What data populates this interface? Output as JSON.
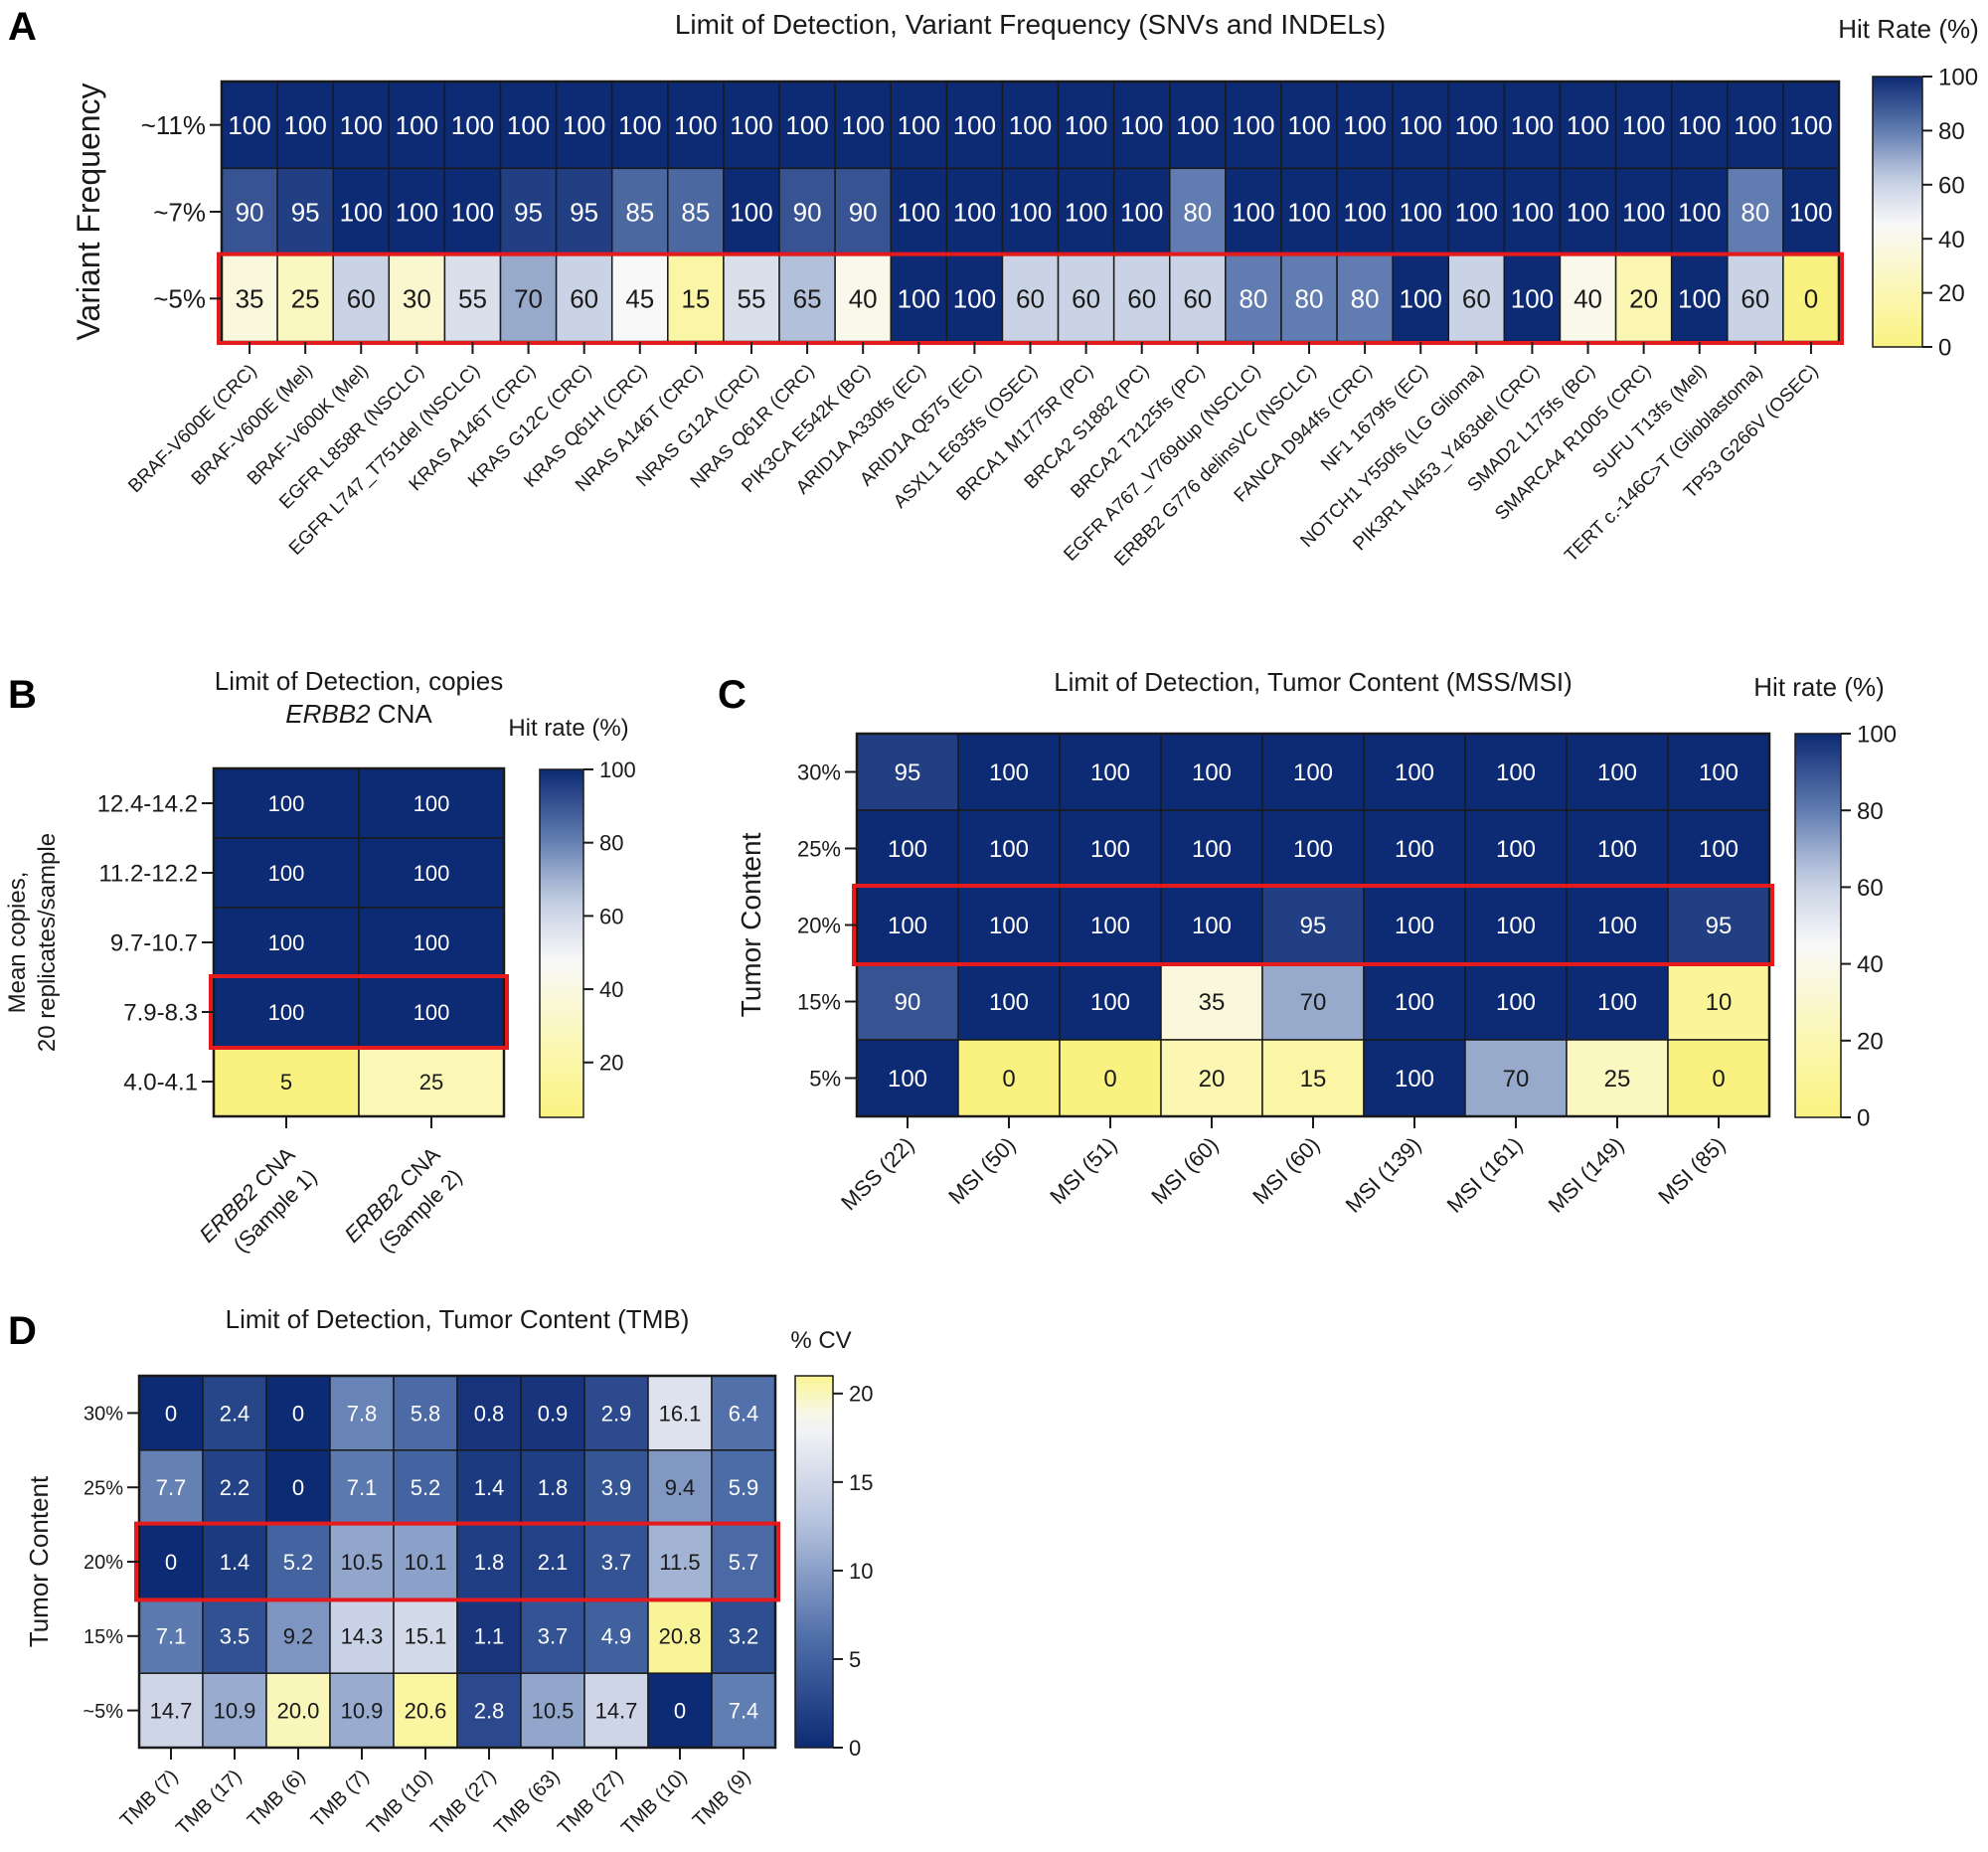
{
  "chart_data": [
    {
      "panel_label": "A",
      "type": "heatmap",
      "title": "Limit of Detection, Variant Frequency (SNVs and  INDELs)",
      "ylabel": "Variant Frequency",
      "colorbar_title": "Hit Rate (%)",
      "colorbar_ticks": [
        "100",
        "80",
        "60",
        "40",
        "20",
        "0"
      ],
      "value_range": [
        0,
        100
      ],
      "colorscale": "hit",
      "rows": [
        "~11%",
        "~7%",
        "~5%"
      ],
      "columns": [
        "BRAF-V600E (CRC)",
        "BRAF-V600E (Mel)",
        "BRAF-V600K (Mel)",
        "EGFR L858R (NSCLC)",
        "EGFR L747_T751del (NSCLC)",
        "KRAS A146T (CRC)",
        "KRAS G12C (CRC)",
        "KRAS Q61H (CRC)",
        "NRAS A146T (CRC)",
        "NRAS G12A (CRC)",
        "NRAS Q61R (CRC)",
        "PIK3CA E542K (BC)",
        "ARID1A A330fs (EC)",
        "ARID1A Q575 (EC)",
        "ASXL1 E635fs (OSEC)",
        "BRCA1 M1775R (PC)",
        "BRCA2 S1882 (PC)",
        "BRCA2 T2125fs (PC)",
        "EGFR A767_V769dup (NSCLC)",
        "ERBB2 G776 delinsVC (NSCLC)",
        "FANCA D944fs (CRC)",
        "NF1 1679fs (EC)",
        "NOTCH1 Y550fs (LG Glioma)",
        "PIK3R1 N453_Y463del (CRC)",
        "SMAD2 L175fs (BC)",
        "SMARCA4 R1005 (CRC)",
        "SUFU T13fs (Mel)",
        "TERT c.-146C>T (Glioblastoma)",
        "TP53 G266V (OSEC)"
      ],
      "values": [
        [
          100,
          100,
          100,
          100,
          100,
          100,
          100,
          100,
          100,
          100,
          100,
          100,
          100,
          100,
          100,
          100,
          100,
          100,
          100,
          100,
          100,
          100,
          100,
          100,
          100,
          100,
          100,
          100,
          100
        ],
        [
          90,
          95,
          100,
          100,
          100,
          95,
          95,
          85,
          85,
          100,
          90,
          90,
          100,
          100,
          100,
          100,
          100,
          80,
          100,
          100,
          100,
          100,
          100,
          100,
          100,
          100,
          100,
          80,
          100
        ],
        [
          35,
          25,
          60,
          30,
          55,
          70,
          60,
          45,
          15,
          55,
          65,
          40,
          100,
          100,
          60,
          60,
          60,
          60,
          80,
          80,
          80,
          100,
          60,
          100,
          40,
          20,
          100,
          60,
          0
        ]
      ],
      "value_labels": [
        [
          "100",
          "100",
          "100",
          "100",
          "100",
          "100",
          "100",
          "100",
          "100",
          "100",
          "100",
          "100",
          "100",
          "100",
          "100",
          "100",
          "100",
          "100",
          "100",
          "100",
          "100",
          "100",
          "100",
          "100",
          "100",
          "100",
          "100",
          "100",
          "100"
        ],
        [
          "90",
          "95",
          "100",
          "100",
          "100",
          "95",
          "95",
          "85",
          "85",
          "100",
          "90",
          "90",
          "100",
          "100",
          "100",
          "100",
          "100",
          "80",
          "100",
          "100",
          "100",
          "100",
          "100",
          "100",
          "100",
          "100",
          "100",
          "80",
          "100"
        ],
        [
          "35",
          "25",
          "60",
          "30",
          "55",
          "70",
          "60",
          "45",
          "15",
          "55",
          "65",
          "40",
          "100",
          "100",
          "60",
          "60",
          "60",
          "60",
          "80",
          "80",
          "80",
          "100",
          "60",
          "100",
          "40",
          "20",
          "100",
          "60",
          "0"
        ]
      ],
      "highlight_row": 2,
      "highlight_color": "#e41a1c"
    },
    {
      "panel_label": "B",
      "type": "heatmap",
      "title_lines": [
        "Limit of Detection, copies"
      ],
      "title_italic": "ERBB2",
      "title_rest": " CNA",
      "ylabel_lines": [
        "Mean copies,",
        "20 replicates/sample"
      ],
      "colorbar_title": "Hit rate  (%)",
      "colorbar_ticks": [
        "100",
        "80",
        "60",
        "40",
        "20"
      ],
      "value_range": [
        5,
        100
      ],
      "colorscale": "hit",
      "rows": [
        "12.4-14.2",
        "11.2-12.2",
        "9.7-10.7",
        "7.9-8.3",
        "4.0-4.1"
      ],
      "columns": [
        {
          "italic": "ERBB2",
          "rest": " CNA",
          "line2": "(Sample 1)"
        },
        {
          "italic": "ERBB2",
          "rest": " CNA",
          "line2": "(Sample 2)"
        }
      ],
      "values": [
        [
          100,
          100
        ],
        [
          100,
          100
        ],
        [
          100,
          100
        ],
        [
          100,
          100
        ],
        [
          5,
          25
        ]
      ],
      "value_labels": [
        [
          "100",
          "100"
        ],
        [
          "100",
          "100"
        ],
        [
          "100",
          "100"
        ],
        [
          "100",
          "100"
        ],
        [
          "5",
          "25"
        ]
      ],
      "highlight_row": 3,
      "highlight_color": "#e41a1c"
    },
    {
      "panel_label": "C",
      "type": "heatmap",
      "title": "Limit of Detection, Tumor Content (MSS/MSI)",
      "ylabel": "Tumor  Content",
      "colorbar_title": "Hit rate  (%)",
      "colorbar_ticks": [
        "100",
        "80",
        "60",
        "40",
        "20",
        "0"
      ],
      "value_range": [
        0,
        100
      ],
      "colorscale": "hit",
      "rows": [
        "30%",
        "25%",
        "20%",
        "15%",
        "5%"
      ],
      "columns": [
        "MSS (22)",
        "MSI (50)",
        "MSI (51)",
        "MSI (60)",
        "MSI (60)",
        "MSI (139)",
        "MSI (161)",
        "MSI (149)",
        "MSI (85)"
      ],
      "values": [
        [
          95,
          100,
          100,
          100,
          100,
          100,
          100,
          100,
          100
        ],
        [
          100,
          100,
          100,
          100,
          100,
          100,
          100,
          100,
          100
        ],
        [
          100,
          100,
          100,
          100,
          95,
          100,
          100,
          100,
          95
        ],
        [
          90,
          100,
          100,
          35,
          70,
          100,
          100,
          100,
          10
        ],
        [
          100,
          0,
          0,
          20,
          15,
          100,
          70,
          25,
          0
        ]
      ],
      "value_labels": [
        [
          "95",
          "100",
          "100",
          "100",
          "100",
          "100",
          "100",
          "100",
          "100"
        ],
        [
          "100",
          "100",
          "100",
          "100",
          "100",
          "100",
          "100",
          "100",
          "100"
        ],
        [
          "100",
          "100",
          "100",
          "100",
          "95",
          "100",
          "100",
          "100",
          "95"
        ],
        [
          "90",
          "100",
          "100",
          "35",
          "70",
          "100",
          "100",
          "100",
          "10"
        ],
        [
          "100",
          "0",
          "0",
          "20",
          "15",
          "100",
          "70",
          "25",
          "0"
        ]
      ],
      "highlight_row": 2,
      "highlight_color": "#e41a1c"
    },
    {
      "panel_label": "D",
      "type": "heatmap",
      "title": "Limit of Detection, Tumor  Content (TMB)",
      "ylabel": "Tumor  Content",
      "colorbar_title": "% CV",
      "colorbar_ticks": [
        "20",
        "15",
        "10",
        "5",
        "0"
      ],
      "value_range": [
        0,
        21
      ],
      "colorscale": "cv",
      "rows": [
        "30%",
        "25%",
        "20%",
        "15%",
        "~5%"
      ],
      "columns": [
        "TMB (7)",
        "TMB (17)",
        "TMB (6)",
        "TMB (7)",
        "TMB (10)",
        "TMB (27)",
        "TMB (63)",
        "TMB (27)",
        "TMB (10)",
        "TMB (9)"
      ],
      "values": [
        [
          0,
          2.4,
          0,
          7.8,
          5.8,
          0.8,
          0.9,
          2.9,
          16.1,
          6.4
        ],
        [
          7.7,
          2.2,
          0,
          7.1,
          5.2,
          1.4,
          1.8,
          3.9,
          9.4,
          5.9
        ],
        [
          0,
          1.4,
          5.2,
          10.5,
          10.1,
          1.8,
          2.1,
          3.7,
          11.5,
          5.7
        ],
        [
          7.1,
          3.5,
          9.2,
          14.3,
          15.1,
          1.1,
          3.7,
          4.9,
          20.8,
          3.2
        ],
        [
          14.7,
          10.9,
          20.0,
          10.9,
          20.6,
          2.8,
          10.5,
          14.7,
          0,
          7.4
        ]
      ],
      "value_labels": [
        [
          "0",
          "2.4",
          "0",
          "7.8",
          "5.8",
          "0.8",
          "0.9",
          "2.9",
          "16.1",
          "6.4"
        ],
        [
          "7.7",
          "2.2",
          "0",
          "7.1",
          "5.2",
          "1.4",
          "1.8",
          "3.9",
          "9.4",
          "5.9"
        ],
        [
          "0",
          "1.4",
          "5.2",
          "10.5",
          "10.1",
          "1.8",
          "2.1",
          "3.7",
          "11.5",
          "5.7"
        ],
        [
          "7.1",
          "3.5",
          "9.2",
          "14.3",
          "15.1",
          "1.1",
          "3.7",
          "4.9",
          "20.8",
          "3.2"
        ],
        [
          "14.7",
          "10.9",
          "20.0",
          "10.9",
          "20.6",
          "2.8",
          "10.5",
          "14.7",
          "0",
          "7.4"
        ]
      ],
      "highlight_row": 2,
      "highlight_color": "#e41a1c"
    }
  ]
}
